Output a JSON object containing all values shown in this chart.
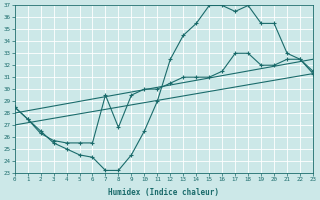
{
  "background_color": "#cce8e8",
  "grid_color": "#ffffff",
  "line_color": "#1a6b6b",
  "xlabel": "Humidex (Indice chaleur)",
  "ylim": [
    23,
    37
  ],
  "xlim": [
    0,
    23
  ],
  "yticks": [
    23,
    24,
    25,
    26,
    27,
    28,
    29,
    30,
    31,
    32,
    33,
    34,
    35,
    36,
    37
  ],
  "xticks": [
    0,
    1,
    2,
    3,
    4,
    5,
    6,
    7,
    8,
    9,
    10,
    11,
    12,
    13,
    14,
    15,
    16,
    17,
    18,
    19,
    20,
    21,
    22,
    23
  ],
  "curve1_x": [
    0,
    1,
    2,
    3,
    4,
    5,
    6,
    7,
    8,
    9,
    10,
    11,
    12,
    13,
    14,
    15,
    16,
    17,
    18,
    19,
    20,
    21,
    22,
    23
  ],
  "curve1_y": [
    28.5,
    27.5,
    26.5,
    25.5,
    25.0,
    24.5,
    24.3,
    23.2,
    23.2,
    24.5,
    26.5,
    29.0,
    32.5,
    34.5,
    35.5,
    37.0,
    37.0,
    36.5,
    37.0,
    35.5,
    35.5,
    33.0,
    32.5,
    31.3
  ],
  "curve2_x": [
    0,
    1,
    2,
    3,
    4,
    5,
    6,
    7,
    8,
    9,
    10,
    11,
    12,
    13,
    14,
    15,
    16,
    17,
    18,
    19,
    20,
    21,
    22,
    23
  ],
  "curve2_y": [
    28.5,
    27.5,
    26.3,
    25.7,
    25.5,
    25.5,
    25.5,
    29.5,
    26.8,
    29.5,
    30.0,
    30.0,
    30.5,
    31.0,
    31.0,
    31.0,
    31.5,
    33.0,
    33.0,
    32.0,
    32.0,
    32.5,
    32.5,
    31.5
  ],
  "line1_x": [
    0,
    23
  ],
  "line1_y": [
    28.0,
    32.5
  ],
  "line2_x": [
    0,
    23
  ],
  "line2_y": [
    27.0,
    31.3
  ]
}
